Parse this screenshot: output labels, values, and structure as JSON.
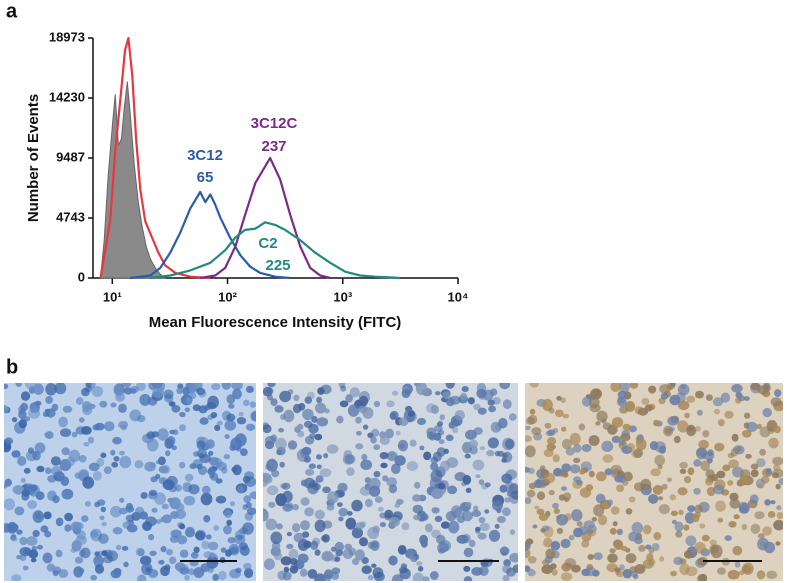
{
  "panel_labels": [
    "a",
    "b"
  ],
  "chart_data": {
    "type": "line",
    "xscale": "log",
    "xlabel": "Mean Fluorescence Intensity (FITC)",
    "ylabel": "Number of Events",
    "xlim": [
      6.8,
      10000
    ],
    "ylim": [
      0,
      18973
    ],
    "xticks": [
      {
        "value": 10,
        "label": "10¹"
      },
      {
        "value": 100,
        "label": "10²"
      },
      {
        "value": 1000,
        "label": "10³"
      },
      {
        "value": 10000,
        "label": "10⁴"
      }
    ],
    "yticks": [
      0,
      4743,
      9487,
      14230,
      18973
    ],
    "series": [
      {
        "color": "#8a8a8a",
        "filled": true,
        "x": [
          7.9,
          8.5,
          9.2,
          10,
          10.6,
          11.3,
          12.0,
          12.7,
          13.5,
          14.3,
          15.5,
          16.8,
          18.2,
          19.7,
          21.4,
          23.6,
          26.1,
          28.8
        ],
        "values": [
          0,
          3000,
          8000,
          12000,
          14500,
          10500,
          11000,
          13500,
          15500,
          13000,
          9000,
          6000,
          4000,
          2500,
          1500,
          800,
          300,
          0
        ]
      },
      {
        "color": "#e8383d",
        "x": [
          7.9,
          9.6,
          10.6,
          11.7,
          12.9,
          13.8,
          14.9,
          16.1,
          17.5,
          19.3,
          21.4,
          25.1,
          28.8,
          35.2,
          47.5,
          70.8
        ],
        "values": [
          0,
          4600,
          10000,
          14000,
          18000,
          18973,
          16000,
          11000,
          7000,
          4500,
          3500,
          2000,
          1000,
          400,
          100,
          0
        ]
      },
      {
        "name": "3C12",
        "mfi": 65,
        "color": "#2a5caa",
        "x": [
          14.3,
          21.4,
          26.1,
          31.8,
          38.9,
          47.5,
          57.9,
          64.1,
          70.8,
          78.2,
          86.4,
          105,
          129,
          157,
          192,
          259,
          350
        ],
        "values": [
          0,
          200,
          800,
          2000,
          3600,
          5500,
          6800,
          6000,
          6600,
          5800,
          4800,
          3200,
          1800,
          900,
          400,
          100,
          0
        ]
      },
      {
        "name": "3C12C",
        "mfi": 237,
        "color": "#7b2a8a",
        "x": [
          57.9,
          78.2,
          95.5,
          117,
          142,
          174,
          234,
          286,
          350,
          427,
          522,
          637,
          778
        ],
        "values": [
          0,
          200,
          800,
          2500,
          5000,
          7500,
          9487,
          7800,
          5000,
          2500,
          800,
          200,
          0
        ]
      },
      {
        "name": "C2",
        "mfi": 225,
        "color": "#1f8a80",
        "x": [
          21.4,
          31.8,
          47.5,
          70.8,
          95.5,
          117,
          142,
          174,
          212,
          259,
          316,
          427,
          577,
          778,
          1050,
          1416,
          1910,
          2576,
          3148
        ],
        "values": [
          0,
          200,
          600,
          1200,
          2200,
          3200,
          3800,
          3900,
          4400,
          4200,
          3800,
          3000,
          2000,
          1200,
          500,
          200,
          100,
          50,
          0
        ]
      }
    ]
  }
}
